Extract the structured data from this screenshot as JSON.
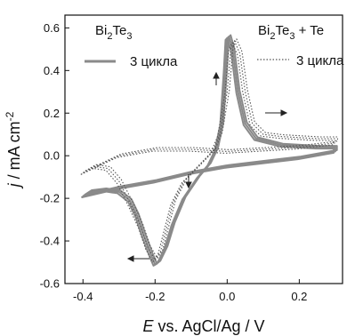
{
  "chart_data": {
    "type": "line",
    "xlabel": "E vs. AgCl/Ag / V",
    "ylabel": "j / mA cm-2",
    "xlim": [
      -0.45,
      0.32
    ],
    "ylim": [
      -0.6,
      0.66
    ],
    "x_ticks": [
      -0.4,
      -0.2,
      0.0,
      0.2
    ],
    "y_ticks": [
      -0.6,
      -0.4,
      -0.2,
      0.0,
      0.2,
      0.4,
      0.6
    ],
    "series": [
      {
        "name": "Bi2Te3",
        "label_main": "Bi",
        "label_sub1": "2",
        "label_mid": "Te",
        "label_sub2": "3",
        "cycles_label": "3 цикла",
        "style": "solid",
        "color": "#8a8a8a",
        "points": [
          [
            -0.4,
            -0.19
          ],
          [
            -0.38,
            -0.168
          ],
          [
            -0.34,
            -0.16
          ],
          [
            -0.3,
            -0.17
          ],
          [
            -0.27,
            -0.21
          ],
          [
            -0.25,
            -0.28
          ],
          [
            -0.23,
            -0.38
          ],
          [
            -0.21,
            -0.47
          ],
          [
            -0.2,
            -0.51
          ],
          [
            -0.19,
            -0.5
          ],
          [
            -0.17,
            -0.43
          ],
          [
            -0.15,
            -0.32
          ],
          [
            -0.12,
            -0.2
          ],
          [
            -0.08,
            -0.1
          ],
          [
            -0.05,
            -0.04
          ],
          [
            -0.03,
            0.03
          ],
          [
            -0.015,
            0.15
          ],
          [
            -0.005,
            0.4
          ],
          [
            0.0,
            0.55
          ],
          [
            0.005,
            0.56
          ],
          [
            0.015,
            0.5
          ],
          [
            0.03,
            0.3
          ],
          [
            0.05,
            0.15
          ],
          [
            0.08,
            0.08
          ],
          [
            0.15,
            0.05
          ],
          [
            0.25,
            0.04
          ],
          [
            0.3,
            0.04
          ],
          [
            0.3,
            0.02
          ],
          [
            0.2,
            -0.01
          ],
          [
            0.1,
            -0.03
          ],
          [
            0.0,
            -0.05
          ],
          [
            -0.1,
            -0.08
          ],
          [
            -0.2,
            -0.12
          ],
          [
            -0.3,
            -0.15
          ],
          [
            -0.4,
            -0.19
          ]
        ]
      },
      {
        "name": "Bi2Te3 + Te",
        "label_main": "Bi",
        "label_sub1": "2",
        "label_mid": "Te",
        "label_sub2": "3",
        "label_tail": " + Te",
        "cycles_label": "3 цикла",
        "style": "dotted",
        "color": "#555555",
        "points": [
          [
            -0.4,
            -0.08
          ],
          [
            -0.37,
            -0.05
          ],
          [
            -0.33,
            -0.06
          ],
          [
            -0.3,
            -0.12
          ],
          [
            -0.27,
            -0.22
          ],
          [
            -0.24,
            -0.33
          ],
          [
            -0.22,
            -0.43
          ],
          [
            -0.2,
            -0.49
          ],
          [
            -0.185,
            -0.45
          ],
          [
            -0.17,
            -0.35
          ],
          [
            -0.15,
            -0.22
          ],
          [
            -0.12,
            -0.12
          ],
          [
            -0.08,
            -0.05
          ],
          [
            -0.04,
            0.02
          ],
          [
            -0.02,
            0.1
          ],
          [
            0.0,
            0.3
          ],
          [
            0.01,
            0.5
          ],
          [
            0.02,
            0.54
          ],
          [
            0.035,
            0.48
          ],
          [
            0.05,
            0.3
          ],
          [
            0.07,
            0.15
          ],
          [
            0.1,
            0.1
          ],
          [
            0.15,
            0.09
          ],
          [
            0.25,
            0.08
          ],
          [
            0.3,
            0.08
          ],
          [
            0.3,
            0.06
          ],
          [
            0.2,
            0.04
          ],
          [
            0.1,
            0.03
          ],
          [
            0.0,
            0.02
          ],
          [
            -0.1,
            0.03
          ],
          [
            -0.2,
            0.03
          ],
          [
            -0.3,
            0.0
          ],
          [
            -0.4,
            -0.08
          ]
        ]
      }
    ]
  }
}
